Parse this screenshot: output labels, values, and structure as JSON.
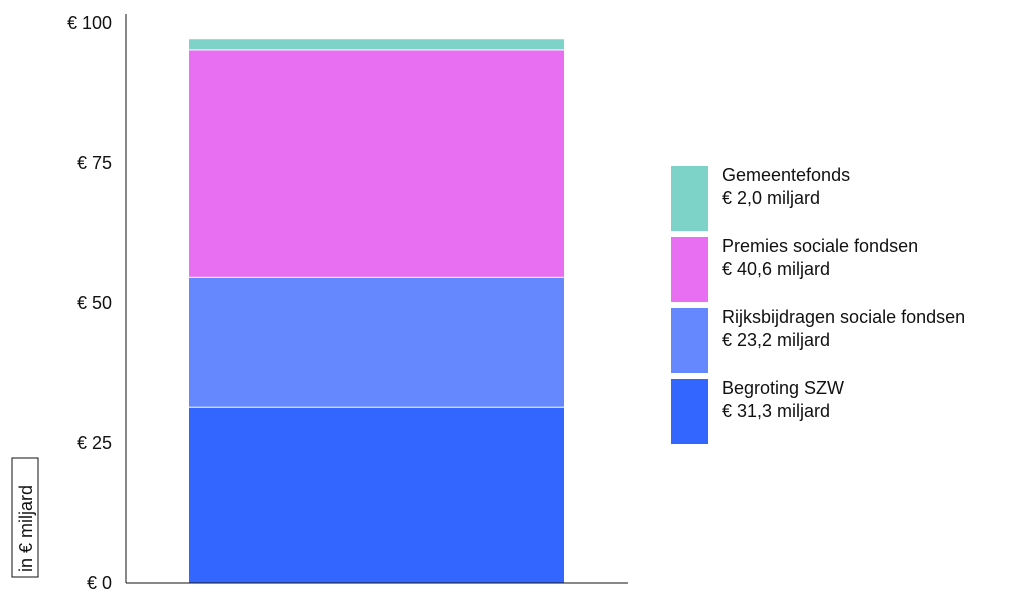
{
  "chart_data": {
    "type": "bar",
    "stacked": true,
    "categories": [
      ""
    ],
    "series": [
      {
        "name": "Begroting SZW",
        "values": [
          31.3
        ],
        "color": "#3366ff",
        "legend_value": "€ 31,3 miljard"
      },
      {
        "name": "Rijksbijdragen sociale fondsen",
        "values": [
          23.2
        ],
        "color": "#6688ff",
        "legend_value": "€ 23,2 miljard"
      },
      {
        "name": "Premies sociale fondsen",
        "values": [
          40.6
        ],
        "color": "#e86ef2",
        "legend_value": "€ 40,6 miljard"
      },
      {
        "name": "Gemeentefonds",
        "values": [
          2.0
        ],
        "color": "#7dd3c8",
        "legend_value": "€ 2,0 miljard"
      }
    ],
    "ylabel": "in € miljard",
    "ylim": [
      0,
      100
    ],
    "yticks": [
      {
        "value": 0,
        "label": "€ 0"
      },
      {
        "value": 25,
        "label": "€ 25"
      },
      {
        "value": 50,
        "label": "€ 50"
      },
      {
        "value": 75,
        "label": "€ 75"
      },
      {
        "value": 100,
        "label": "€ 100"
      }
    ],
    "grid": false,
    "legend_position": "right"
  }
}
